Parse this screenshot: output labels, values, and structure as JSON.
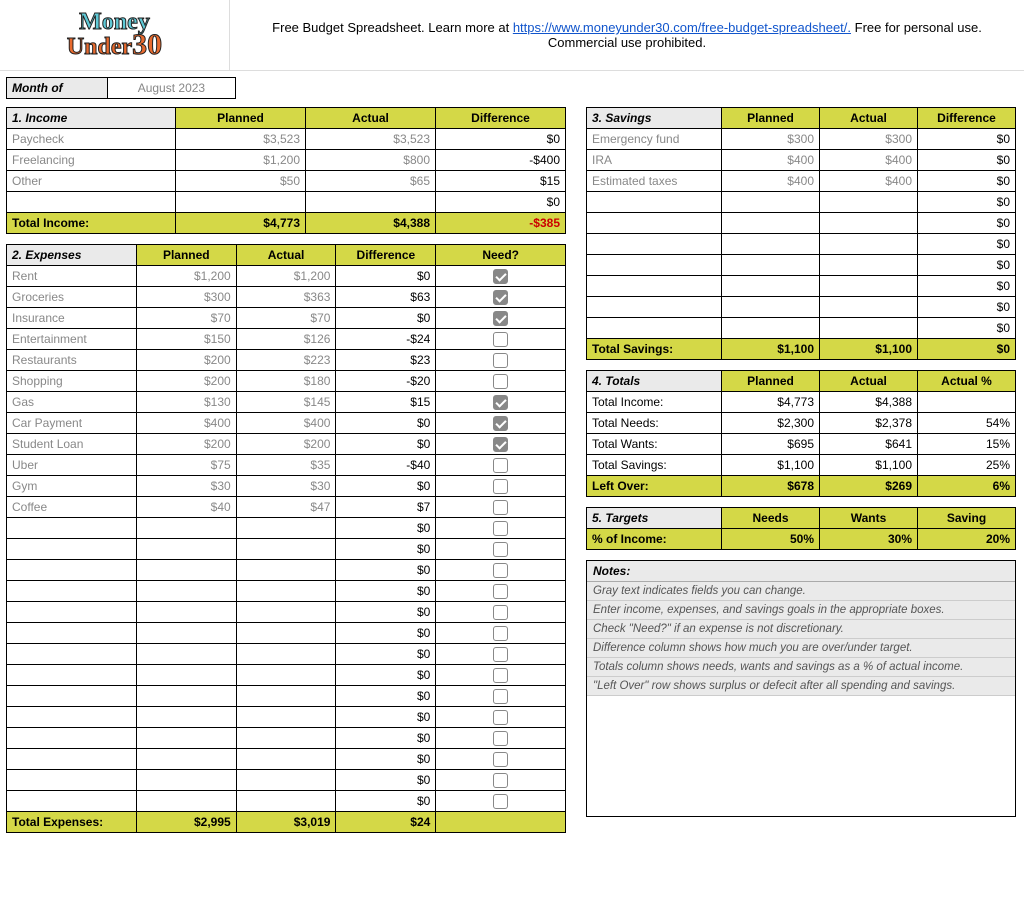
{
  "header": {
    "text_before": "Free Budget Spreadsheet. Learn more at ",
    "link_text": "https://www.moneyunder30.com/free-budget-spreadsheet/.",
    "link_href": "https://www.moneyunder30.com/free-budget-spreadsheet/",
    "text_after": " Free for personal use. Commercial use prohibited.",
    "logo_line1": "Money",
    "logo_line2": "Under",
    "logo_line3": "30"
  },
  "month": {
    "label": "Month of",
    "value": "August 2023"
  },
  "colors": {
    "olive": "#d4d847",
    "gray_bg": "#eaeaea",
    "link": "#1155cc",
    "negative": "#cc0000",
    "gray_text": "#888888"
  },
  "income": {
    "title": "1. Income",
    "cols": [
      "Planned",
      "Actual",
      "Difference"
    ],
    "rows": [
      {
        "label": "Paycheck",
        "planned": "$3,523",
        "actual": "$3,523",
        "diff": "$0"
      },
      {
        "label": "Freelancing",
        "planned": "$1,200",
        "actual": "$800",
        "diff": "-$400"
      },
      {
        "label": "Other",
        "planned": "$50",
        "actual": "$65",
        "diff": "$15"
      },
      {
        "label": "",
        "planned": "",
        "actual": "",
        "diff": "$0"
      }
    ],
    "total": {
      "label": "Total Income:",
      "planned": "$4,773",
      "actual": "$4,388",
      "diff": "-$385",
      "diff_negative": true
    }
  },
  "expenses": {
    "title": "2. Expenses",
    "cols": [
      "Planned",
      "Actual",
      "Difference",
      "Need?"
    ],
    "rows": [
      {
        "label": "Rent",
        "planned": "$1,200",
        "actual": "$1,200",
        "diff": "$0",
        "need": true
      },
      {
        "label": "Groceries",
        "planned": "$300",
        "actual": "$363",
        "diff": "$63",
        "need": true
      },
      {
        "label": "Insurance",
        "planned": "$70",
        "actual": "$70",
        "diff": "$0",
        "need": true
      },
      {
        "label": "Entertainment",
        "planned": "$150",
        "actual": "$126",
        "diff": "-$24",
        "need": false
      },
      {
        "label": "Restaurants",
        "planned": "$200",
        "actual": "$223",
        "diff": "$23",
        "need": false
      },
      {
        "label": "Shopping",
        "planned": "$200",
        "actual": "$180",
        "diff": "-$20",
        "need": false
      },
      {
        "label": "Gas",
        "planned": "$130",
        "actual": "$145",
        "diff": "$15",
        "need": true
      },
      {
        "label": "Car Payment",
        "planned": "$400",
        "actual": "$400",
        "diff": "$0",
        "need": true
      },
      {
        "label": "Student Loan",
        "planned": "$200",
        "actual": "$200",
        "diff": "$0",
        "need": true
      },
      {
        "label": "Uber",
        "planned": "$75",
        "actual": "$35",
        "diff": "-$40",
        "need": false
      },
      {
        "label": "Gym",
        "planned": "$30",
        "actual": "$30",
        "diff": "$0",
        "need": false
      },
      {
        "label": "Coffee",
        "planned": "$40",
        "actual": "$47",
        "diff": "$7",
        "need": false
      }
    ],
    "empty_rows": 14,
    "total": {
      "label": "Total Expenses:",
      "planned": "$2,995",
      "actual": "$3,019",
      "diff": "$24"
    }
  },
  "savings": {
    "title": "3. Savings",
    "cols": [
      "Planned",
      "Actual",
      "Difference"
    ],
    "rows": [
      {
        "label": "Emergency fund",
        "planned": "$300",
        "actual": "$300",
        "diff": "$0"
      },
      {
        "label": "IRA",
        "planned": "$400",
        "actual": "$400",
        "diff": "$0"
      },
      {
        "label": "Estimated taxes",
        "planned": "$400",
        "actual": "$400",
        "diff": "$0"
      }
    ],
    "empty_rows": 7,
    "total": {
      "label": "Total Savings:",
      "planned": "$1,100",
      "actual": "$1,100",
      "diff": "$0"
    }
  },
  "totals": {
    "title": "4. Totals",
    "cols": [
      "Planned",
      "Actual",
      "Actual %"
    ],
    "rows": [
      {
        "label": "Total Income:",
        "c1": "$4,773",
        "c2": "$4,388",
        "c3": ""
      },
      {
        "label": "Total Needs:",
        "c1": "$2,300",
        "c2": "$2,378",
        "c3": "54%"
      },
      {
        "label": "Total Wants:",
        "c1": "$695",
        "c2": "$641",
        "c3": "15%"
      },
      {
        "label": "Total Savings:",
        "c1": "$1,100",
        "c2": "$1,100",
        "c3": "25%"
      }
    ],
    "leftover": {
      "label": "Left Over:",
      "c1": "$678",
      "c2": "$269",
      "c3": "6%"
    }
  },
  "targets": {
    "title": "5. Targets",
    "cols": [
      "Needs",
      "Wants",
      "Saving"
    ],
    "row": {
      "label": "% of Income:",
      "c1": "50%",
      "c2": "30%",
      "c3": "20%"
    }
  },
  "notes": {
    "title": "Notes:",
    "lines": [
      "Gray text indicates fields you can change.",
      "Enter income, expenses, and savings goals in the appropriate boxes.",
      "Check \"Need?\" if an expense is not discretionary.",
      "Difference column shows how much you are over/under target.",
      "Totals column shows needs, wants and savings as a % of actual income.",
      "\"Left Over\" row shows surplus or defecit after all spending and savings."
    ]
  }
}
